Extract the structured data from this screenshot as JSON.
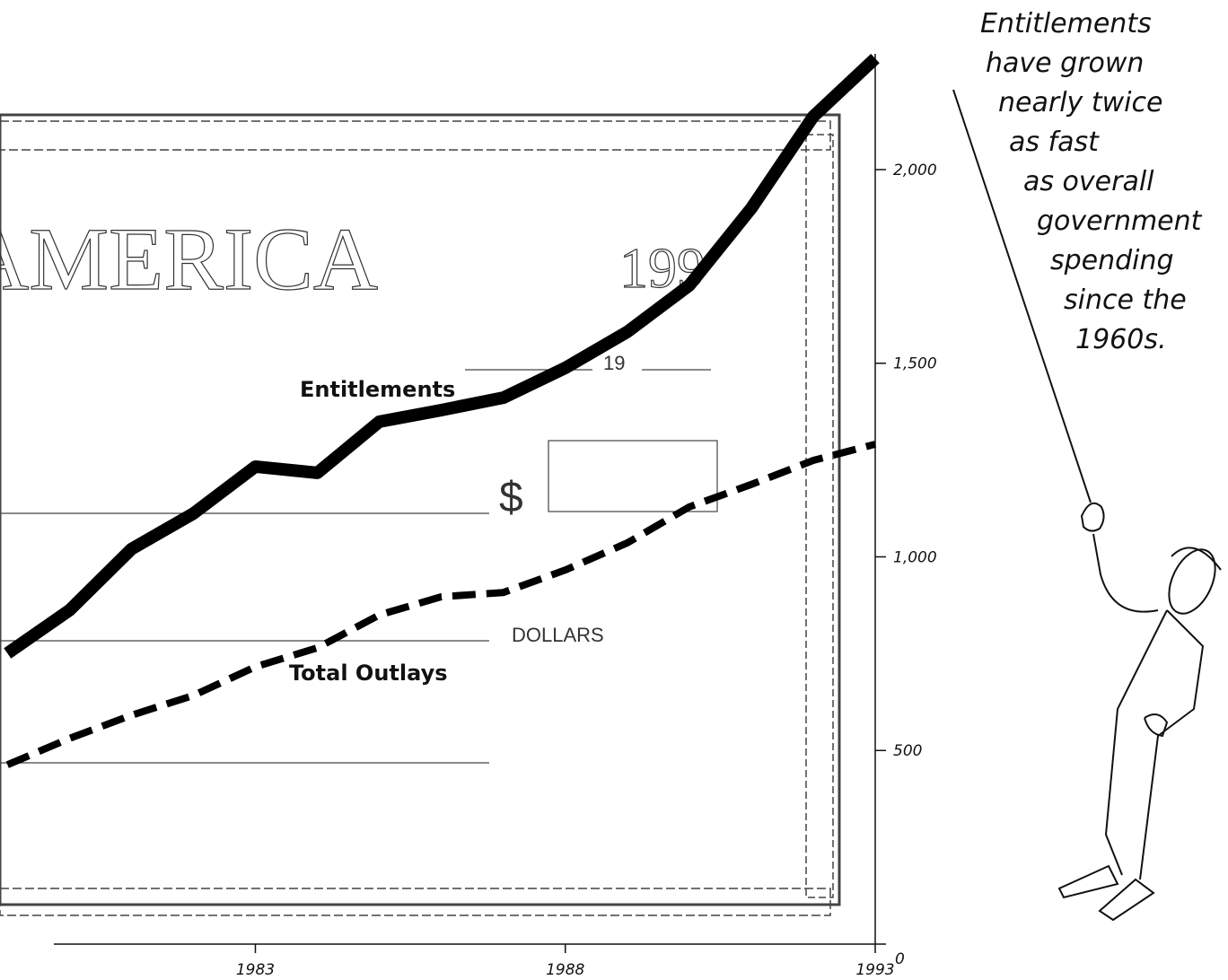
{
  "chart_data": {
    "type": "line",
    "x": [
      1979,
      1980,
      1981,
      1982,
      1983,
      1984,
      1985,
      1986,
      1987,
      1988,
      1989,
      1990,
      1991,
      1992,
      1993
    ],
    "series": [
      {
        "name": "Entitlements",
        "color": "#000000",
        "style": "solid",
        "values": [
          751,
          862,
          1020,
          1112,
          1233,
          1217,
          1349,
          1379,
          1411,
          1488,
          1581,
          1701,
          1900,
          2137,
          2287
        ]
      },
      {
        "name": "Total Outlays",
        "color": "#000000",
        "style": "dashed",
        "values": [
          463,
          531,
          591,
          642,
          716,
          765,
          850,
          897,
          908,
          966,
          1036,
          1129,
          1187,
          1249,
          1291
        ]
      }
    ],
    "xlim": [
      1978.88,
      1993
    ],
    "xticks": [
      1983,
      1988,
      1993
    ],
    "ylim": [
      0,
      2438
    ],
    "yticks": [
      0,
      500,
      {
        "value": 1000,
        "label": "1,000"
      },
      {
        "value": 1500,
        "label": "1,500"
      },
      {
        "value": 2000,
        "label": "2,000"
      }
    ],
    "annotation": [
      "Entitlements",
      "have grown",
      "nearly twice",
      "as fast",
      "as overall",
      "government",
      "spending",
      "since the",
      "1960s."
    ],
    "background_texts": {
      "word": "AMERICA",
      "date": "199",
      "date_prefix": "19",
      "currency": "$",
      "amount_word": "DOLLARS"
    }
  }
}
